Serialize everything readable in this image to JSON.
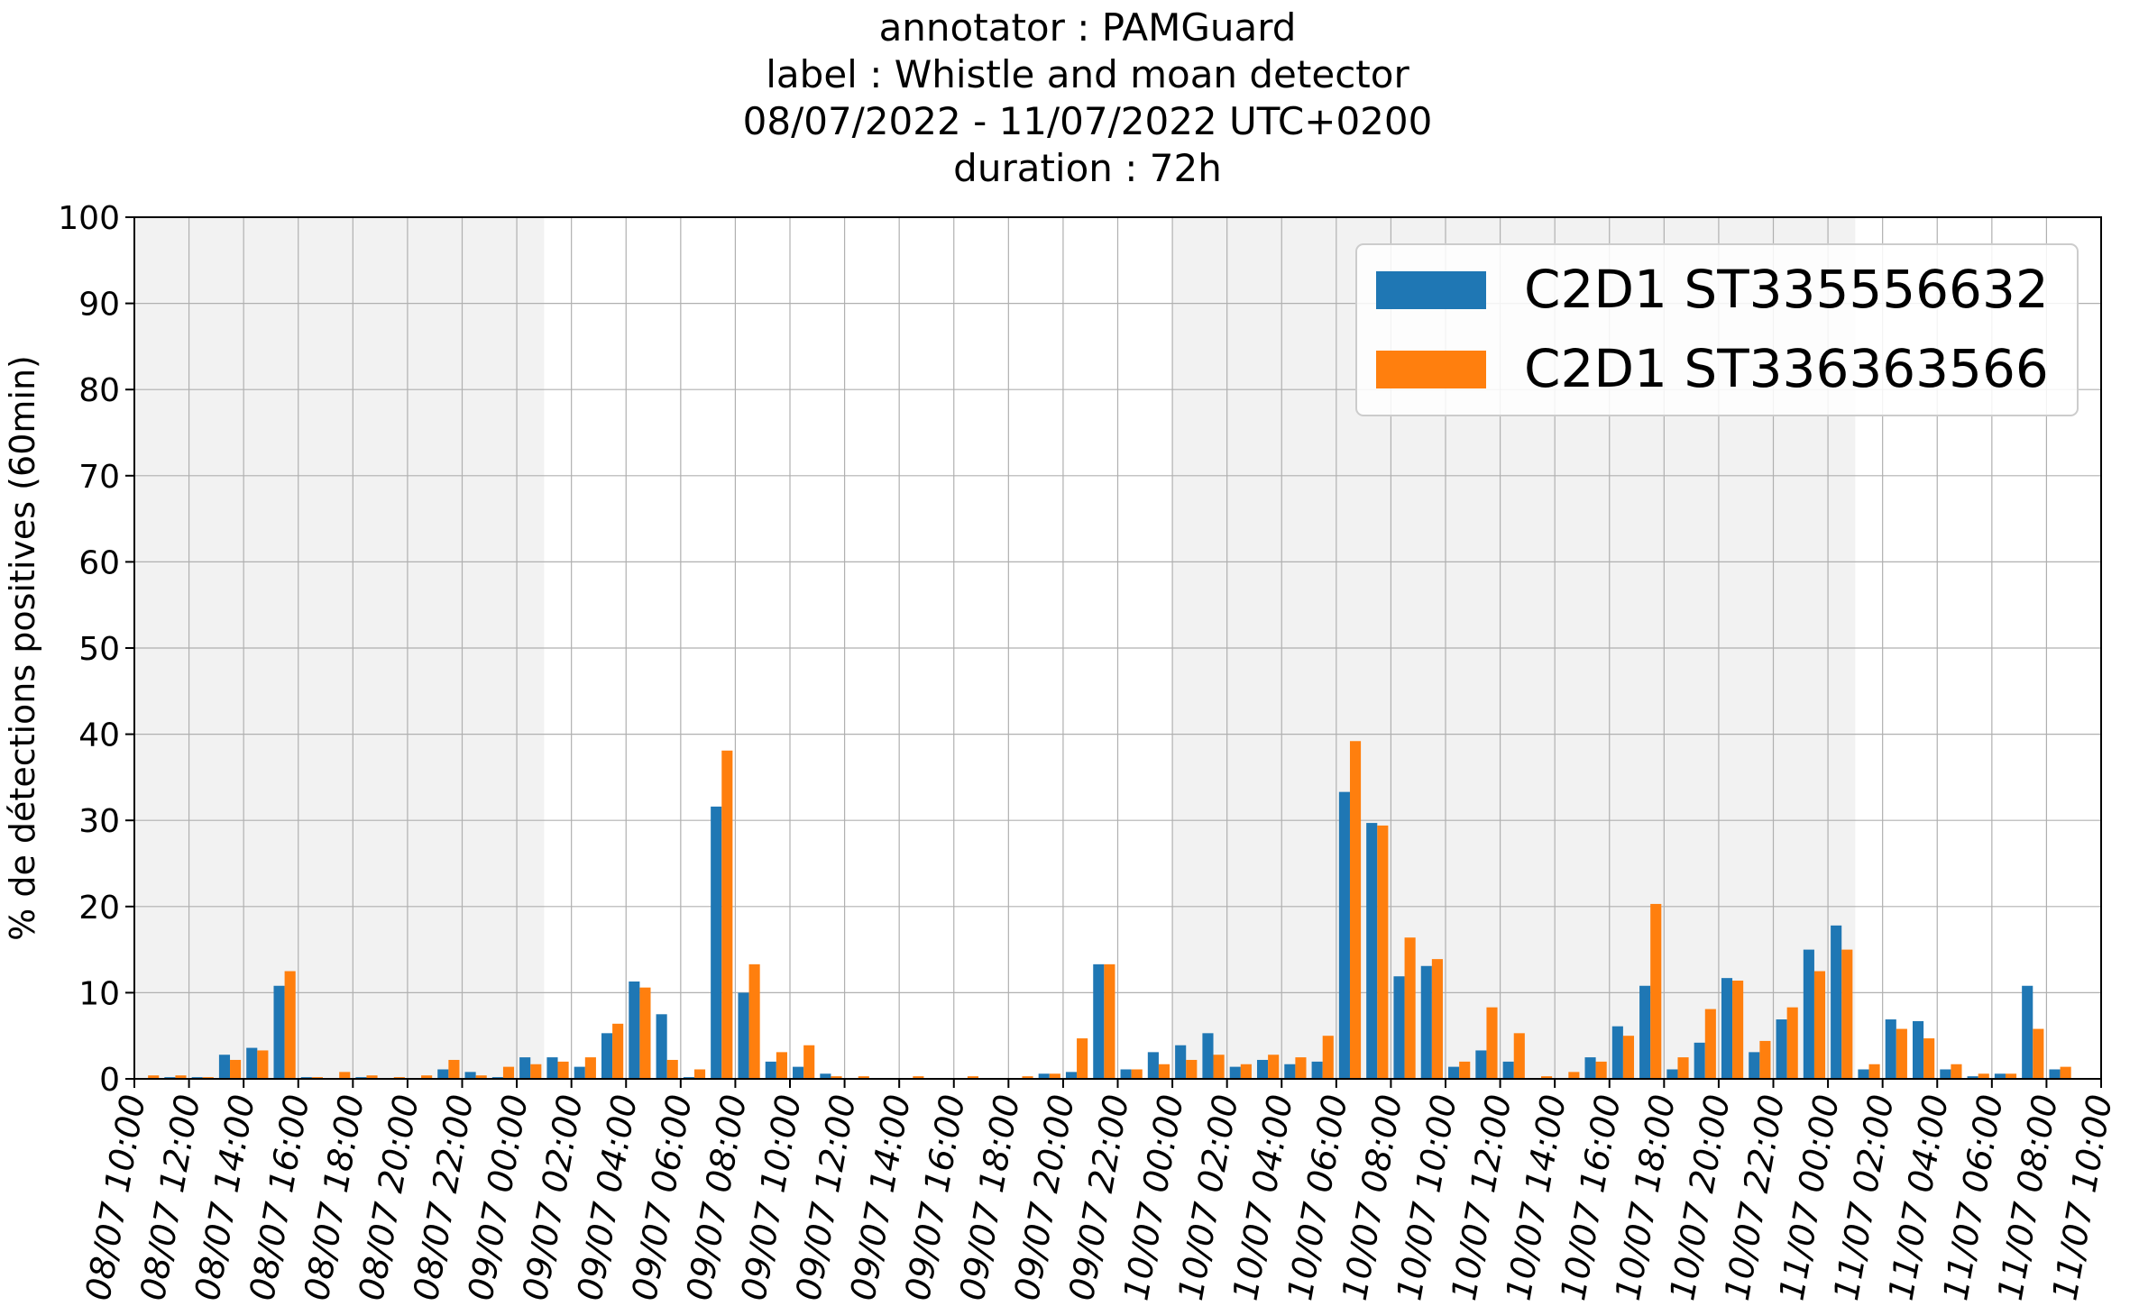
{
  "chart_data": {
    "type": "bar",
    "title_lines": [
      "annotator : PAMGuard",
      "label : Whistle and moan detector",
      "08/07/2022 - 11/07/2022 UTC+0200",
      "duration : 72h"
    ],
    "xlabel": "",
    "ylabel": "% de détections positives (60min)",
    "ylim": [
      0,
      100
    ],
    "yticks": [
      0,
      10,
      20,
      30,
      40,
      50,
      60,
      70,
      80,
      90,
      100
    ],
    "xlim_hours": [
      0,
      72
    ],
    "xtick_labels": [
      "08/07 10:00",
      "08/07 12:00",
      "08/07 14:00",
      "08/07 16:00",
      "08/07 18:00",
      "08/07 20:00",
      "08/07 22:00",
      "09/07 00:00",
      "09/07 02:00",
      "09/07 04:00",
      "09/07 06:00",
      "09/07 08:00",
      "09/07 10:00",
      "09/07 12:00",
      "09/07 14:00",
      "09/07 16:00",
      "09/07 18:00",
      "09/07 20:00",
      "09/07 22:00",
      "10/07 00:00",
      "10/07 02:00",
      "10/07 04:00",
      "10/07 06:00",
      "10/07 08:00",
      "10/07 10:00",
      "10/07 12:00",
      "10/07 14:00",
      "10/07 16:00",
      "10/07 18:00",
      "10/07 20:00",
      "10/07 22:00",
      "11/07 00:00",
      "11/07 02:00",
      "11/07 04:00",
      "11/07 06:00",
      "11/07 08:00",
      "11/07 10:00"
    ],
    "grid": true,
    "legend_position": "top-right",
    "night_shading_hours": [
      [
        0,
        15
      ],
      [
        38,
        63
      ]
    ],
    "series": [
      {
        "name": "C2D1 ST335556632",
        "color": "#1f77b4",
        "values": [
          0.0,
          0.2,
          0.2,
          2.8,
          3.6,
          10.8,
          0.2,
          0.0,
          0.2,
          0.0,
          0.0,
          1.1,
          0.8,
          0.2,
          2.5,
          2.5,
          1.4,
          5.3,
          11.3,
          7.5,
          0.2,
          31.6,
          10.0,
          2.0,
          1.4,
          0.6,
          0.0,
          0.0,
          0.0,
          0.0,
          0.0,
          0.0,
          0.0,
          0.6,
          0.8,
          13.3,
          1.1,
          3.1,
          3.9,
          5.3,
          1.4,
          2.2,
          1.7,
          2.0,
          33.3,
          29.7,
          11.9,
          13.1,
          1.4,
          3.3,
          2.0,
          0.0,
          0.0,
          2.5,
          6.1,
          10.8,
          1.1,
          4.2,
          11.7,
          3.1,
          6.9,
          15.0,
          17.8,
          1.1,
          6.9,
          6.7,
          1.1,
          0.3,
          0.6,
          10.8,
          1.1,
          0.0
        ]
      },
      {
        "name": "C2D1 ST336363566",
        "color": "#ff7f0e",
        "values": [
          0.4,
          0.4,
          0.2,
          2.2,
          3.3,
          12.5,
          0.2,
          0.8,
          0.4,
          0.2,
          0.4,
          2.2,
          0.4,
          1.4,
          1.7,
          2.0,
          2.5,
          6.4,
          10.6,
          2.2,
          1.1,
          38.1,
          13.3,
          3.1,
          3.9,
          0.3,
          0.3,
          0.0,
          0.3,
          0.0,
          0.3,
          0.0,
          0.3,
          0.6,
          4.7,
          13.3,
          1.1,
          1.7,
          2.2,
          2.8,
          1.7,
          2.8,
          2.5,
          5.0,
          39.2,
          29.4,
          16.4,
          13.9,
          2.0,
          8.3,
          5.3,
          0.3,
          0.8,
          2.0,
          5.0,
          20.3,
          2.5,
          8.1,
          11.4,
          4.4,
          8.3,
          12.5,
          15.0,
          1.7,
          5.8,
          4.7,
          1.7,
          0.6,
          0.6,
          5.8,
          1.4,
          0.0
        ]
      }
    ]
  }
}
